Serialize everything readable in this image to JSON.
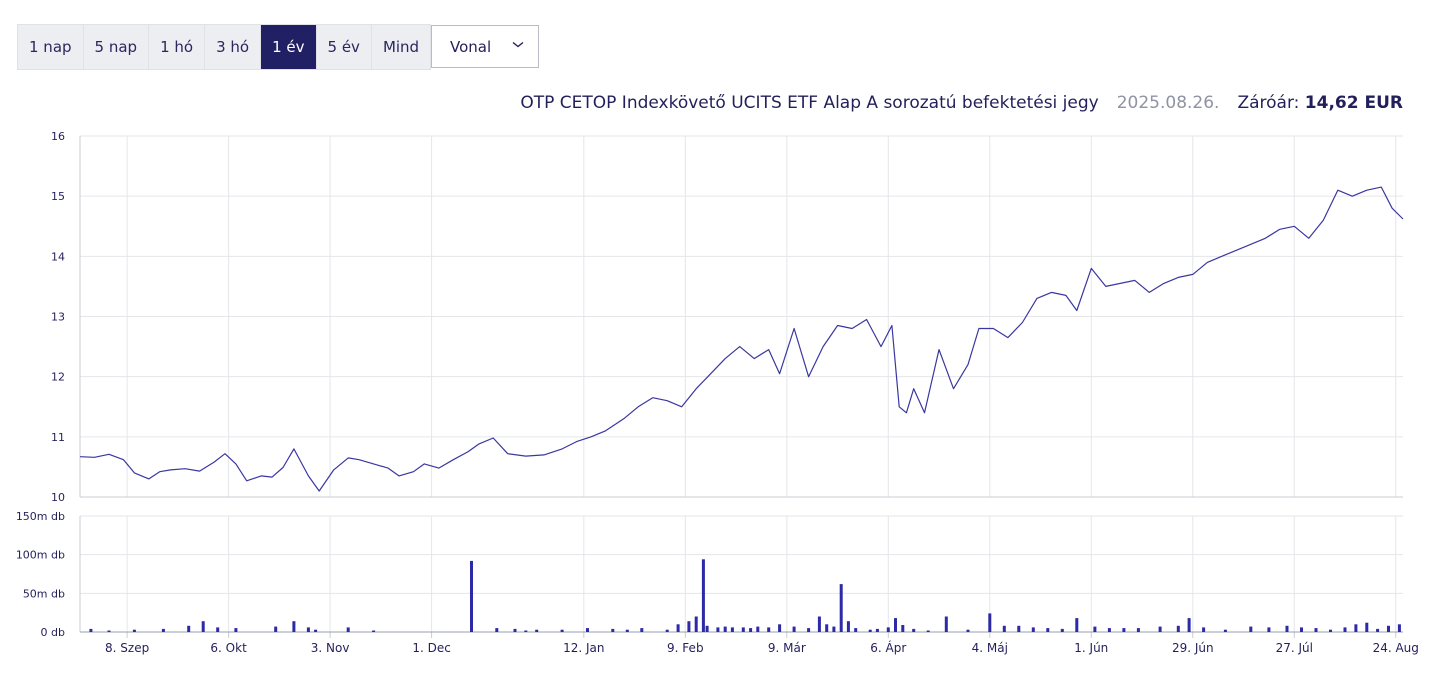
{
  "controls": {
    "ranges": [
      {
        "label": "1 nap",
        "active": false
      },
      {
        "label": "5 nap",
        "active": false
      },
      {
        "label": "1 hó",
        "active": false
      },
      {
        "label": "3 hó",
        "active": false
      },
      {
        "label": "1 év",
        "active": true
      },
      {
        "label": "5 év",
        "active": false
      },
      {
        "label": "Mind",
        "active": false
      }
    ],
    "chart_type_select": {
      "value": "Vonal",
      "icon": "chevron-down-icon"
    }
  },
  "info": {
    "fund_name": "OTP CETOP Indexkövető UCITS ETF Alap A sorozatú befektetési jegy",
    "date": "2025.08.26.",
    "close_label": "Záróár:",
    "close_value": "14,62 EUR"
  },
  "colors": {
    "accent": "#222065",
    "line": "#3a37a0",
    "bar": "#2c2aa6",
    "grid": "#e4e6ea"
  },
  "chart_data": [
    {
      "type": "line",
      "title": "",
      "ylim": [
        10,
        16
      ],
      "yticks": [
        10,
        11,
        12,
        13,
        14,
        15,
        16
      ],
      "ytick_labels": [
        "10",
        "11",
        "12",
        "13",
        "14",
        "15",
        "16"
      ],
      "xlim": [
        "2024-08-26",
        "2025-08-26"
      ],
      "xticks": [
        "2024-09-08",
        "2024-10-06",
        "2024-11-03",
        "2024-12-01",
        "2025-01-12",
        "2025-02-09",
        "2025-03-09",
        "2025-04-06",
        "2025-05-04",
        "2025-06-01",
        "2025-06-29",
        "2025-07-27",
        "2025-08-24"
      ],
      "xtick_labels": [
        "8. Szep",
        "6. Okt",
        "3. Nov",
        "1. Dec",
        "12. Jan",
        "9. Feb",
        "9. Már",
        "6. Ápr",
        "4. Máj",
        "1. Jún",
        "29. Jún",
        "27. Júl",
        "24. Aug"
      ],
      "grid": true,
      "series": [
        {
          "x": [
            "2024-08-26",
            "2024-08-30",
            "2024-09-03",
            "2024-09-07",
            "2024-09-10",
            "2024-09-14",
            "2024-09-17",
            "2024-09-20",
            "2024-09-24",
            "2024-09-28",
            "2024-10-02",
            "2024-10-05",
            "2024-10-08",
            "2024-10-11",
            "2024-10-15",
            "2024-10-18",
            "2024-10-21",
            "2024-10-24",
            "2024-10-28",
            "2024-10-31",
            "2024-11-04",
            "2024-11-08",
            "2024-11-11",
            "2024-11-15",
            "2024-11-19",
            "2024-11-22",
            "2024-11-26",
            "2024-11-29",
            "2024-12-03",
            "2024-12-07",
            "2024-12-11",
            "2024-12-14",
            "2024-12-18",
            "2024-12-22",
            "2024-12-27",
            "2025-01-01",
            "2025-01-06",
            "2025-01-10",
            "2025-01-14",
            "2025-01-18",
            "2025-01-23",
            "2025-01-27",
            "2025-01-31",
            "2025-02-04",
            "2025-02-08",
            "2025-02-12",
            "2025-02-16",
            "2025-02-20",
            "2025-02-24",
            "2025-02-28",
            "2025-03-04",
            "2025-03-07",
            "2025-03-11",
            "2025-03-15",
            "2025-03-19",
            "2025-03-23",
            "2025-03-27",
            "2025-03-31",
            "2025-04-04",
            "2025-04-07",
            "2025-04-09",
            "2025-04-11",
            "2025-04-13",
            "2025-04-16",
            "2025-04-20",
            "2025-04-24",
            "2025-04-28",
            "2025-05-01",
            "2025-05-05",
            "2025-05-09",
            "2025-05-13",
            "2025-05-17",
            "2025-05-21",
            "2025-05-25",
            "2025-05-28",
            "2025-06-01",
            "2025-06-05",
            "2025-06-09",
            "2025-06-13",
            "2025-06-17",
            "2025-06-21",
            "2025-06-25",
            "2025-06-29",
            "2025-07-03",
            "2025-07-07",
            "2025-07-11",
            "2025-07-15",
            "2025-07-19",
            "2025-07-23",
            "2025-07-27",
            "2025-07-31",
            "2025-08-04",
            "2025-08-08",
            "2025-08-12",
            "2025-08-16",
            "2025-08-20",
            "2025-08-23",
            "2025-08-26"
          ],
          "values": [
            10.67,
            10.66,
            10.71,
            10.62,
            10.4,
            10.3,
            10.42,
            10.45,
            10.47,
            10.43,
            10.58,
            10.72,
            10.55,
            10.27,
            10.35,
            10.33,
            10.49,
            10.8,
            10.35,
            10.1,
            10.45,
            10.65,
            10.62,
            10.55,
            10.48,
            10.35,
            10.42,
            10.55,
            10.48,
            10.62,
            10.75,
            10.88,
            10.98,
            10.72,
            10.68,
            10.7,
            10.8,
            10.92,
            11.0,
            11.1,
            11.3,
            11.5,
            11.65,
            11.6,
            11.5,
            11.8,
            12.05,
            12.3,
            12.5,
            12.3,
            12.45,
            12.05,
            12.8,
            12.0,
            12.5,
            12.85,
            12.8,
            12.95,
            12.5,
            12.85,
            11.5,
            11.4,
            11.8,
            11.4,
            12.45,
            11.8,
            12.2,
            12.8,
            12.8,
            12.65,
            12.9,
            13.3,
            13.4,
            13.35,
            13.1,
            13.8,
            13.5,
            13.55,
            13.6,
            13.4,
            13.55,
            13.65,
            13.7,
            13.9,
            14.0,
            14.1,
            14.2,
            14.3,
            14.45,
            14.5,
            14.3,
            14.6,
            15.1,
            15.0,
            15.1,
            15.15,
            14.8,
            14.62
          ]
        }
      ]
    },
    {
      "type": "bar",
      "title": "",
      "ylim": [
        0,
        150
      ],
      "yticks": [
        0,
        50,
        100,
        150
      ],
      "ytick_labels": [
        "0 db",
        "50m db",
        "100m db",
        "150m db"
      ],
      "units": "db",
      "grid": true,
      "series": [
        {
          "x": [
            "2024-08-29",
            "2024-09-03",
            "2024-09-10",
            "2024-09-18",
            "2024-09-25",
            "2024-09-29",
            "2024-10-03",
            "2024-10-08",
            "2024-10-19",
            "2024-10-24",
            "2024-10-28",
            "2024-10-30",
            "2024-11-08",
            "2024-11-15",
            "2024-12-12",
            "2024-12-19",
            "2024-12-24",
            "2024-12-27",
            "2024-12-30",
            "2025-01-06",
            "2025-01-13",
            "2025-01-20",
            "2025-01-24",
            "2025-01-28",
            "2025-02-04",
            "2025-02-07",
            "2025-02-10",
            "2025-02-12",
            "2025-02-14",
            "2025-02-15",
            "2025-02-18",
            "2025-02-20",
            "2025-02-22",
            "2025-02-25",
            "2025-02-27",
            "2025-03-01",
            "2025-03-04",
            "2025-03-07",
            "2025-03-11",
            "2025-03-15",
            "2025-03-18",
            "2025-03-20",
            "2025-03-22",
            "2025-03-24",
            "2025-03-26",
            "2025-03-28",
            "2025-04-01",
            "2025-04-03",
            "2025-04-06",
            "2025-04-08",
            "2025-04-10",
            "2025-04-13",
            "2025-04-17",
            "2025-04-22",
            "2025-04-28",
            "2025-05-04",
            "2025-05-08",
            "2025-05-12",
            "2025-05-16",
            "2025-05-20",
            "2025-05-24",
            "2025-05-28",
            "2025-06-02",
            "2025-06-06",
            "2025-06-10",
            "2025-06-14",
            "2025-06-20",
            "2025-06-25",
            "2025-06-28",
            "2025-07-02",
            "2025-07-08",
            "2025-07-15",
            "2025-07-20",
            "2025-07-25",
            "2025-07-29",
            "2025-08-02",
            "2025-08-06",
            "2025-08-10",
            "2025-08-13",
            "2025-08-16",
            "2025-08-19",
            "2025-08-22",
            "2025-08-25"
          ],
          "values": [
            4,
            2,
            3,
            4,
            8,
            14,
            6,
            5,
            7,
            14,
            6,
            3,
            6,
            2,
            92,
            5,
            4,
            2,
            3,
            3,
            5,
            4,
            3,
            5,
            3,
            10,
            14,
            20,
            94,
            8,
            6,
            7,
            6,
            6,
            5,
            7,
            6,
            10,
            7,
            5,
            20,
            10,
            7,
            62,
            14,
            5,
            3,
            4,
            6,
            18,
            9,
            4,
            2,
            20,
            3,
            24,
            8,
            8,
            6,
            5,
            4,
            18,
            7,
            5,
            5,
            5,
            7,
            8,
            18,
            6,
            3,
            7,
            6,
            8,
            6,
            5,
            3,
            6,
            10,
            12,
            4,
            8,
            10
          ]
        }
      ]
    }
  ]
}
